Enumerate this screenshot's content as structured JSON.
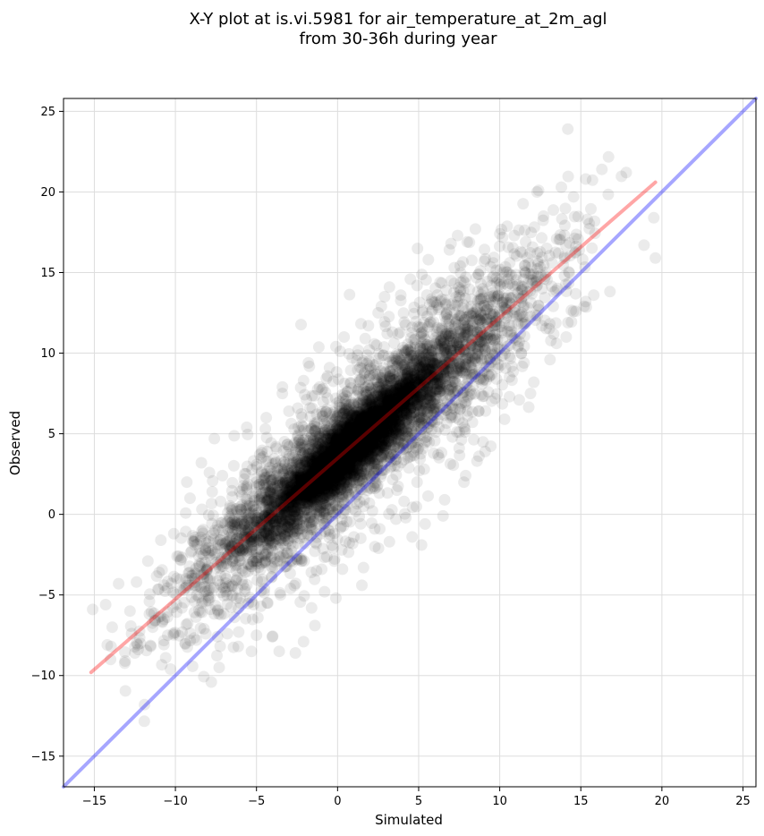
{
  "chart_data": {
    "type": "scatter",
    "title_lines": [
      "X-Y plot at is.vi.5981 for air_temperature_at_2m_agl",
      "from 30-36h during year"
    ],
    "xlabel": "Simulated",
    "ylabel": "Observed",
    "xlim": [
      -16.9,
      25.8
    ],
    "ylim": [
      -16.9,
      25.8
    ],
    "xticks": [
      -15,
      -10,
      -5,
      0,
      5,
      10,
      15,
      20,
      25
    ],
    "yticks": [
      -15,
      -10,
      -5,
      0,
      5,
      10,
      15,
      20,
      25
    ],
    "xtick_labels": [
      "−15",
      "−10",
      "−5",
      "0",
      "5",
      "10",
      "15",
      "20",
      "25"
    ],
    "ytick_labels": [
      "−15",
      "−10",
      "−5",
      "0",
      "5",
      "10",
      "15",
      "20",
      "25"
    ],
    "grid": true,
    "point_color": "#000000",
    "point_opacity": 0.08,
    "scatter_points": [
      [
        14.2,
        23.9
      ],
      [
        17.8,
        21.2
      ],
      [
        16.3,
        21.4
      ],
      [
        15.3,
        20.8
      ],
      [
        12.3,
        20.0
      ],
      [
        13.8,
        20.3
      ],
      [
        19.5,
        18.4
      ],
      [
        19.6,
        15.9
      ],
      [
        18.9,
        16.7
      ],
      [
        15.4,
        18.3
      ],
      [
        14.0,
        16.0
      ],
      [
        15.8,
        13.6
      ],
      [
        15.2,
        12.9
      ],
      [
        12.7,
        18.5
      ],
      [
        12.9,
        16.5
      ],
      [
        11.6,
        16.9
      ],
      [
        10.9,
        17.3
      ],
      [
        8.5,
        17.7
      ],
      [
        8.0,
        16.9
      ],
      [
        7.0,
        16.8
      ],
      [
        7.2,
        15.3
      ],
      [
        5.6,
        15.8
      ],
      [
        4.9,
        14.2
      ],
      [
        3.2,
        14.1
      ],
      [
        2.9,
        13.5
      ],
      [
        2.5,
        12.5
      ],
      [
        1.7,
        10.9
      ],
      [
        0.4,
        11.0
      ],
      [
        -0.1,
        10.4
      ],
      [
        -1.8,
        9.4
      ],
      [
        -2.1,
        8.3
      ],
      [
        -3.4,
        7.9
      ],
      [
        -3.0,
        6.4
      ],
      [
        -4.4,
        6.0
      ],
      [
        -5.6,
        5.4
      ],
      [
        -7.6,
        4.7
      ],
      [
        -8.4,
        3.2
      ],
      [
        -7.1,
        2.4
      ],
      [
        -9.3,
        2.0
      ],
      [
        -9.1,
        1.0
      ],
      [
        -10.1,
        -1.2
      ],
      [
        -10.9,
        -1.6
      ],
      [
        -11.7,
        -2.9
      ],
      [
        -12.4,
        -4.2
      ],
      [
        -13.5,
        -4.3
      ],
      [
        -12.8,
        -6.0
      ],
      [
        -14.3,
        -5.6
      ],
      [
        -15.1,
        -5.9
      ],
      [
        -13.9,
        -7.0
      ],
      [
        -14.2,
        -8.1
      ],
      [
        -13.1,
        -9.1
      ],
      [
        -14.0,
        -9.0
      ],
      [
        -12.5,
        -8.6
      ],
      [
        -11.9,
        -11.8
      ],
      [
        -10.6,
        -8.9
      ],
      [
        -10.3,
        -9.6
      ],
      [
        -9.4,
        -8.0
      ],
      [
        -8.7,
        -7.8
      ],
      [
        -7.3,
        -9.5
      ],
      [
        -6.8,
        -7.4
      ],
      [
        -6.1,
        -7.3
      ],
      [
        -5.0,
        -7.5
      ],
      [
        -3.6,
        -8.5
      ],
      [
        -2.6,
        -8.6
      ],
      [
        -2.1,
        -7.9
      ],
      [
        -1.4,
        -6.9
      ],
      [
        -1.6,
        -5.8
      ],
      [
        -0.8,
        -4.8
      ],
      [
        -0.1,
        -5.2
      ],
      [
        0.3,
        -3.4
      ],
      [
        1.5,
        -4.4
      ],
      [
        1.6,
        -3.3
      ],
      [
        2.3,
        -2.0
      ],
      [
        3.2,
        -1.7
      ],
      [
        4.6,
        -1.4
      ],
      [
        5.4,
        -0.6
      ],
      [
        6.5,
        -0.1
      ],
      [
        6.6,
        0.9
      ],
      [
        7.9,
        2.4
      ],
      [
        8.6,
        3.3
      ],
      [
        9.1,
        3.9
      ],
      [
        10.3,
        5.9
      ],
      [
        10.6,
        7.3
      ],
      [
        11.2,
        7.1
      ],
      [
        11.9,
        7.5
      ],
      [
        12.1,
        8.2
      ],
      [
        11.5,
        9.4
      ],
      [
        13.1,
        9.6
      ],
      [
        13.5,
        10.6
      ],
      [
        14.1,
        11.0
      ],
      [
        14.7,
        12.6
      ],
      [
        15.3,
        13.2
      ],
      [
        13.3,
        12.9
      ],
      [
        12.6,
        11.7
      ],
      [
        9.8,
        8.4
      ],
      [
        9.3,
        7.6
      ],
      [
        8.7,
        6.4
      ],
      [
        7.5,
        5.1
      ],
      [
        6.2,
        3.7
      ],
      [
        4.9,
        2.0
      ],
      [
        4.1,
        0.8
      ],
      [
        3.6,
        -0.3
      ],
      [
        2.6,
        -0.9
      ],
      [
        -0.2,
        -2.9
      ],
      [
        -1.3,
        -3.5
      ],
      [
        -2.9,
        -4.6
      ],
      [
        -4.3,
        -5.5
      ],
      [
        -6.0,
        -5.2
      ],
      [
        -7.9,
        -4.7
      ],
      [
        -9.6,
        -5.8
      ],
      [
        -10.8,
        -6.7
      ],
      [
        -11.4,
        -7.0
      ],
      [
        -12.7,
        -7.4
      ],
      [
        -11.0,
        -3.6
      ],
      [
        -9.9,
        -2.6
      ],
      [
        -8.8,
        -1.9
      ],
      [
        -7.4,
        -0.7
      ],
      [
        -6.5,
        0.4
      ],
      [
        -5.8,
        1.8
      ],
      [
        -4.8,
        3.7
      ],
      [
        -3.8,
        4.2
      ],
      [
        -2.3,
        5.2
      ],
      [
        -1.7,
        6.6
      ],
      [
        -0.9,
        7.8
      ],
      [
        -0.5,
        9.1
      ],
      [
        0.9,
        9.7
      ],
      [
        1.9,
        11.7
      ],
      [
        2.7,
        12.9
      ],
      [
        3.9,
        13.6
      ],
      [
        4.6,
        11.6
      ],
      [
        5.8,
        12.6
      ],
      [
        6.7,
        13.9
      ],
      [
        7.6,
        14.4
      ],
      [
        8.8,
        15.1
      ],
      [
        9.6,
        15.6
      ],
      [
        10.5,
        14.6
      ],
      [
        11.7,
        13.8
      ],
      [
        12.4,
        12.7
      ]
    ],
    "density_bands": [
      {
        "x_range": [
          -15.3,
          17.5
        ],
        "slope": 0.87,
        "intercept": 3.5,
        "spread": 1.7,
        "count": 2600
      },
      {
        "x_range": [
          -8,
          10
        ],
        "slope": 0.87,
        "intercept": 3.5,
        "spread": 1.0,
        "count": 2200
      },
      {
        "x_range": [
          -14,
          19
        ],
        "slope": 0.87,
        "intercept": 3.4,
        "spread": 2.9,
        "count": 1300
      },
      {
        "x_range": [
          -3,
          4
        ],
        "slope": 0.87,
        "intercept": 3.4,
        "spread": 1.0,
        "count": 800
      }
    ],
    "lines": [
      {
        "name": "",
        "color": "#ff0000",
        "opacity": 0.35,
        "points": [
          [
            -15.2,
            -9.8
          ],
          [
            19.6,
            20.6
          ]
        ]
      },
      {
        "name": "",
        "color": "#0000ff",
        "opacity": 0.35,
        "points": [
          [
            -16.9,
            -16.9
          ],
          [
            25.8,
            25.8
          ]
        ]
      }
    ]
  }
}
